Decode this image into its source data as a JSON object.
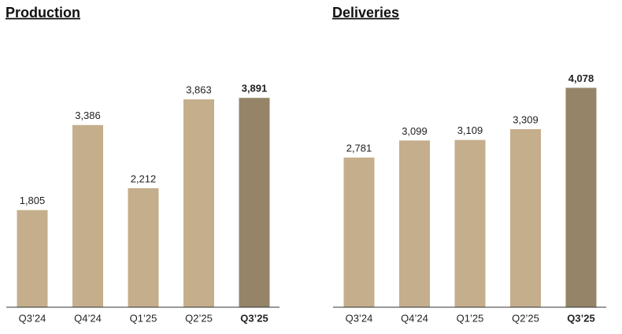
{
  "chart_data": [
    {
      "type": "bar",
      "title": "Production",
      "categories": [
        "Q3’24",
        "Q4’24",
        "Q1’25",
        "Q2’25",
        "Q3’25"
      ],
      "values": [
        1805,
        3386,
        2212,
        3863,
        3891
      ],
      "value_labels": [
        "1,805",
        "3,386",
        "2,212",
        "3,863",
        "3,891"
      ],
      "colors": [
        "#c5ae8c",
        "#c5ae8c",
        "#c5ae8c",
        "#c5ae8c",
        "#958468"
      ]
    },
    {
      "type": "bar",
      "title": "Deliveries",
      "categories": [
        "Q3’24",
        "Q4’24",
        "Q1’25",
        "Q2’25",
        "Q3’25"
      ],
      "values": [
        2781,
        3099,
        3109,
        3309,
        4078
      ],
      "value_labels": [
        "2,781",
        "3,099",
        "3,109",
        "3,309",
        "4,078"
      ],
      "colors": [
        "#c5ae8c",
        "#c5ae8c",
        "#c5ae8c",
        "#c5ae8c",
        "#958468"
      ]
    }
  ]
}
